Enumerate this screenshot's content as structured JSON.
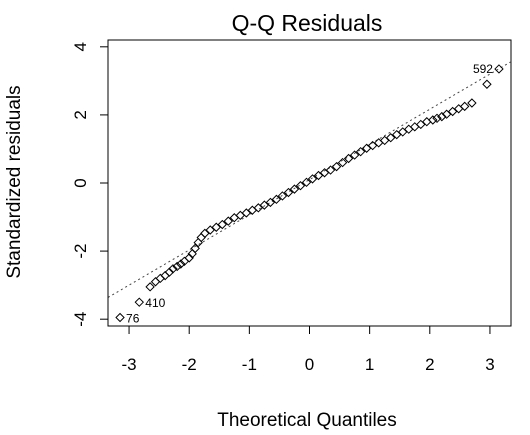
{
  "chart_data": {
    "type": "scatter",
    "title": "Q-Q Residuals",
    "xlabel": "Theoretical Quantiles",
    "ylabel": "Standardized residuals",
    "xlim": [
      -3.35,
      3.35
    ],
    "ylim": [
      -4.2,
      4.2
    ],
    "x_ticks": [
      -3,
      -2,
      -1,
      0,
      1,
      2,
      3
    ],
    "y_ticks": [
      -4,
      -2,
      0,
      2,
      4
    ],
    "grid": false,
    "reference_line": {
      "style": "dotted",
      "points": [
        [
          -3,
          -3.0
        ],
        [
          3,
          3.2
        ]
      ]
    },
    "labeled_points": [
      {
        "label": "76",
        "x": -3.15,
        "y": -3.95
      },
      {
        "label": "410",
        "x": -2.83,
        "y": -3.5
      },
      {
        "label": "592",
        "x": 3.15,
        "y": 3.35
      }
    ],
    "points": [
      [
        -3.15,
        -3.95
      ],
      [
        -2.83,
        -3.5
      ],
      [
        -2.65,
        -3.05
      ],
      [
        -2.56,
        -2.9
      ],
      [
        -2.48,
        -2.8
      ],
      [
        -2.4,
        -2.72
      ],
      [
        -2.33,
        -2.62
      ],
      [
        -2.27,
        -2.52
      ],
      [
        -2.2,
        -2.45
      ],
      [
        -2.14,
        -2.38
      ],
      [
        -2.08,
        -2.3
      ],
      [
        -2.0,
        -2.2
      ],
      [
        -1.95,
        -2.08
      ],
      [
        -1.9,
        -1.92
      ],
      [
        -1.85,
        -1.75
      ],
      [
        -1.8,
        -1.6
      ],
      [
        -1.74,
        -1.48
      ],
      [
        -1.65,
        -1.38
      ],
      [
        -1.55,
        -1.3
      ],
      [
        -1.45,
        -1.22
      ],
      [
        -1.35,
        -1.12
      ],
      [
        -1.25,
        -1.02
      ],
      [
        -1.15,
        -0.95
      ],
      [
        -1.05,
        -0.88
      ],
      [
        -0.95,
        -0.8
      ],
      [
        -0.85,
        -0.73
      ],
      [
        -0.75,
        -0.65
      ],
      [
        -0.65,
        -0.57
      ],
      [
        -0.55,
        -0.48
      ],
      [
        -0.45,
        -0.38
      ],
      [
        -0.35,
        -0.28
      ],
      [
        -0.25,
        -0.18
      ],
      [
        -0.15,
        -0.08
      ],
      [
        -0.05,
        0.02
      ],
      [
        0.05,
        0.12
      ],
      [
        0.15,
        0.22
      ],
      [
        0.25,
        0.3
      ],
      [
        0.35,
        0.38
      ],
      [
        0.45,
        0.48
      ],
      [
        0.55,
        0.6
      ],
      [
        0.65,
        0.72
      ],
      [
        0.75,
        0.82
      ],
      [
        0.85,
        0.92
      ],
      [
        0.95,
        1.02
      ],
      [
        1.05,
        1.1
      ],
      [
        1.15,
        1.18
      ],
      [
        1.25,
        1.25
      ],
      [
        1.35,
        1.33
      ],
      [
        1.45,
        1.42
      ],
      [
        1.55,
        1.5
      ],
      [
        1.65,
        1.58
      ],
      [
        1.75,
        1.65
      ],
      [
        1.85,
        1.72
      ],
      [
        1.95,
        1.8
      ],
      [
        2.05,
        1.85
      ],
      [
        2.12,
        1.9
      ],
      [
        2.2,
        1.95
      ],
      [
        2.28,
        2.02
      ],
      [
        2.38,
        2.1
      ],
      [
        2.48,
        2.18
      ],
      [
        2.58,
        2.25
      ],
      [
        2.7,
        2.35
      ],
      [
        2.95,
        2.9
      ],
      [
        3.15,
        3.35
      ]
    ]
  }
}
